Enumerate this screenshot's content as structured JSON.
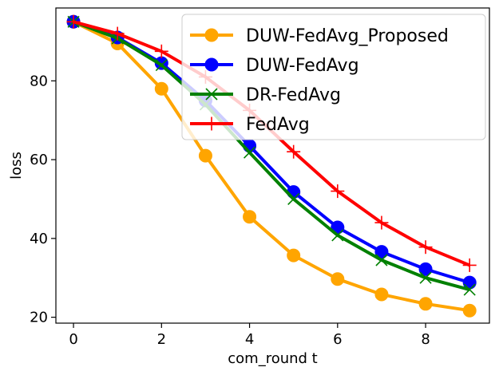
{
  "chart_data": {
    "type": "line",
    "xlabel": "com_round t",
    "ylabel": "loss",
    "xlim": [
      -0.4,
      9.45
    ],
    "ylim": [
      18.5,
      98.5
    ],
    "xticks": [
      0,
      2,
      4,
      6,
      8
    ],
    "yticks": [
      20,
      40,
      60,
      80
    ],
    "grid": false,
    "legend_position": "upper-right",
    "x": [
      0,
      1,
      2,
      3,
      4,
      5,
      6,
      7,
      8,
      9
    ],
    "series": [
      {
        "name": "DUW-FedAvg_Proposed",
        "color": "#ffa500",
        "marker": "circle",
        "values": [
          95.0,
          89.5,
          78.0,
          61.0,
          45.5,
          35.7,
          29.7,
          25.8,
          23.4,
          21.7
        ]
      },
      {
        "name": "DUW-FedAvg",
        "color": "#0000ff",
        "marker": "circle",
        "values": [
          95.0,
          91.0,
          84.5,
          75.0,
          63.5,
          51.8,
          42.8,
          36.6,
          32.2,
          28.8
        ]
      },
      {
        "name": "DR-FedAvg",
        "color": "#008000",
        "marker": "x",
        "values": [
          95.0,
          90.8,
          84.0,
          74.0,
          61.8,
          50.0,
          40.8,
          34.5,
          30.0,
          27.0
        ]
      },
      {
        "name": "FedAvg",
        "color": "#ff0000",
        "marker": "plus",
        "values": [
          95.0,
          92.0,
          87.5,
          81.0,
          72.5,
          62.0,
          52.0,
          44.0,
          37.8,
          33.2
        ]
      }
    ]
  }
}
